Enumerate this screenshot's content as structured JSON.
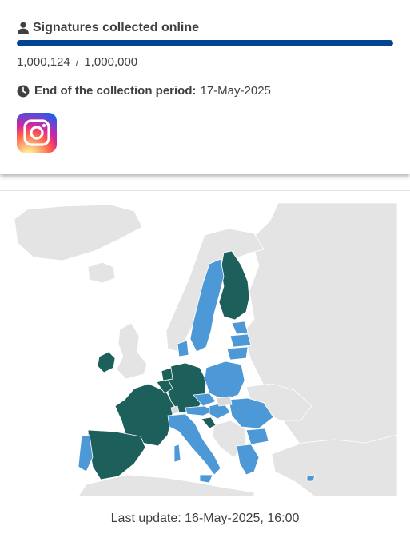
{
  "signatures": {
    "title": "Signatures collected online",
    "collected": "1,000,124",
    "separator": "/",
    "goal": "1,000,000",
    "progress_fraction": 1.0,
    "person_icon": "person-icon",
    "bar_color": "#004494"
  },
  "period": {
    "label": "End of the collection period:",
    "date": "17-May-2025",
    "icon": "clock-icon"
  },
  "social": {
    "icon": "instagram-icon"
  },
  "map": {
    "colors": {
      "reached": "#1d5f5a",
      "collected": "#4d98d6",
      "eu_none": "#d9d9d9",
      "non_eu": "#e4e4e4"
    }
  },
  "footer": {
    "last_update": "Last update: 16-May-2025, 16:00"
  }
}
